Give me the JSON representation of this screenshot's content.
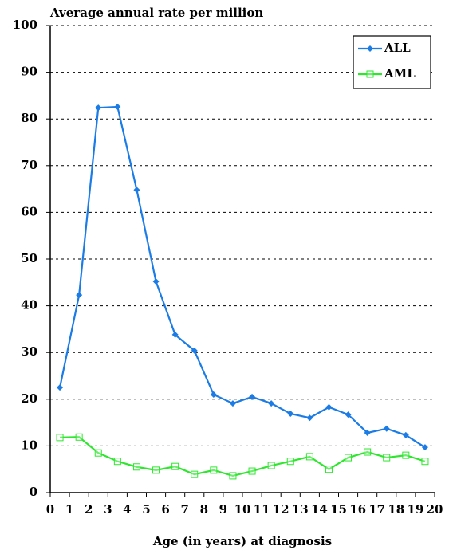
{
  "chart_data": {
    "type": "line",
    "title": "Average annual rate per million",
    "x_label": "Age (in years) at diagnosis",
    "x": [
      0.5,
      1.5,
      2.5,
      3.5,
      4.5,
      5.5,
      6.5,
      7.5,
      8.5,
      9.5,
      10.5,
      11.5,
      12.5,
      13.5,
      14.5,
      15.5,
      16.5,
      17.5,
      18.5,
      19.5
    ],
    "series": [
      {
        "name": "ALL",
        "color": "#1b7ce6",
        "marker": "diamond",
        "values": [
          22.5,
          42.3,
          82.4,
          82.6,
          64.8,
          45.2,
          33.8,
          30.4,
          21,
          19.1,
          20.5,
          19.1,
          16.9,
          16,
          18.3,
          16.7,
          12.8,
          13.7,
          12.3,
          9.7
        ]
      },
      {
        "name": "AML",
        "color": "#2ee62e",
        "marker": "square",
        "values": [
          11.8,
          11.9,
          8.5,
          6.7,
          5.5,
          4.8,
          5.6,
          3.9,
          4.8,
          3.6,
          4.6,
          5.8,
          6.7,
          7.7,
          5,
          7.5,
          8.7,
          7.5,
          8,
          6.7
        ]
      }
    ],
    "xlim": [
      0,
      20
    ],
    "xticks": [
      0,
      1,
      2,
      3,
      4,
      5,
      6,
      7,
      8,
      9,
      10,
      11,
      12,
      13,
      14,
      15,
      16,
      17,
      18,
      19,
      20
    ],
    "ylim": [
      0,
      100
    ],
    "yticks": [
      0,
      10,
      20,
      30,
      40,
      50,
      60,
      70,
      80,
      90,
      100
    ],
    "grid": true,
    "legend": "upper right"
  }
}
